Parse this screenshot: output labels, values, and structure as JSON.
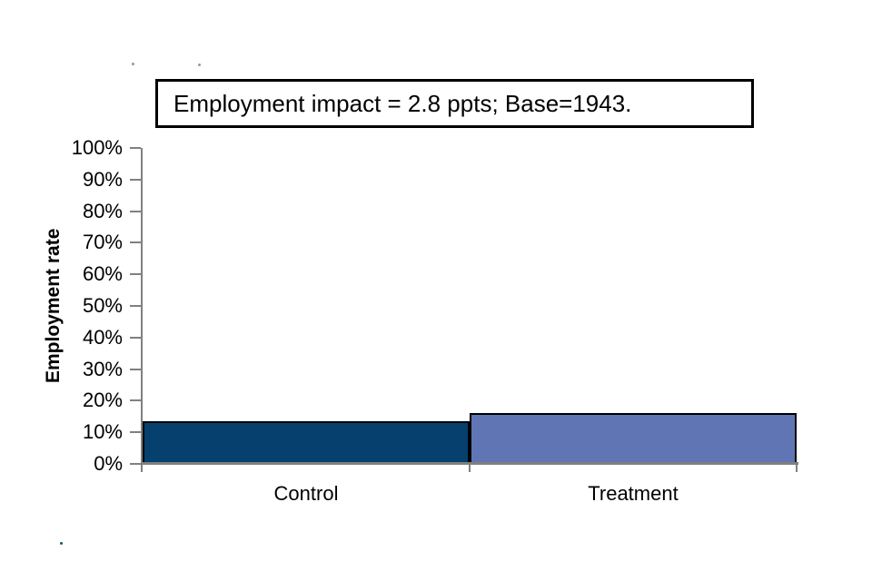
{
  "chart_data": {
    "type": "bar",
    "title": "Employment impact = 2.8 ppts; Base=1943.",
    "categories": [
      "Control",
      "Treatment"
    ],
    "values": [
      13.4,
      16.2
    ],
    "bar_colors": [
      "#05406f",
      "#6076b4"
    ],
    "bar_border_color": "#000000",
    "xlabel": "",
    "ylabel": "Employment rate",
    "ylim": [
      0,
      100
    ],
    "y_ticks": [
      "0%",
      "10%",
      "20%",
      "30%",
      "40%",
      "50%",
      "60%",
      "70%",
      "80%",
      "90%",
      "100%"
    ],
    "axis_color": "#808080",
    "grid": false,
    "legend": false
  }
}
